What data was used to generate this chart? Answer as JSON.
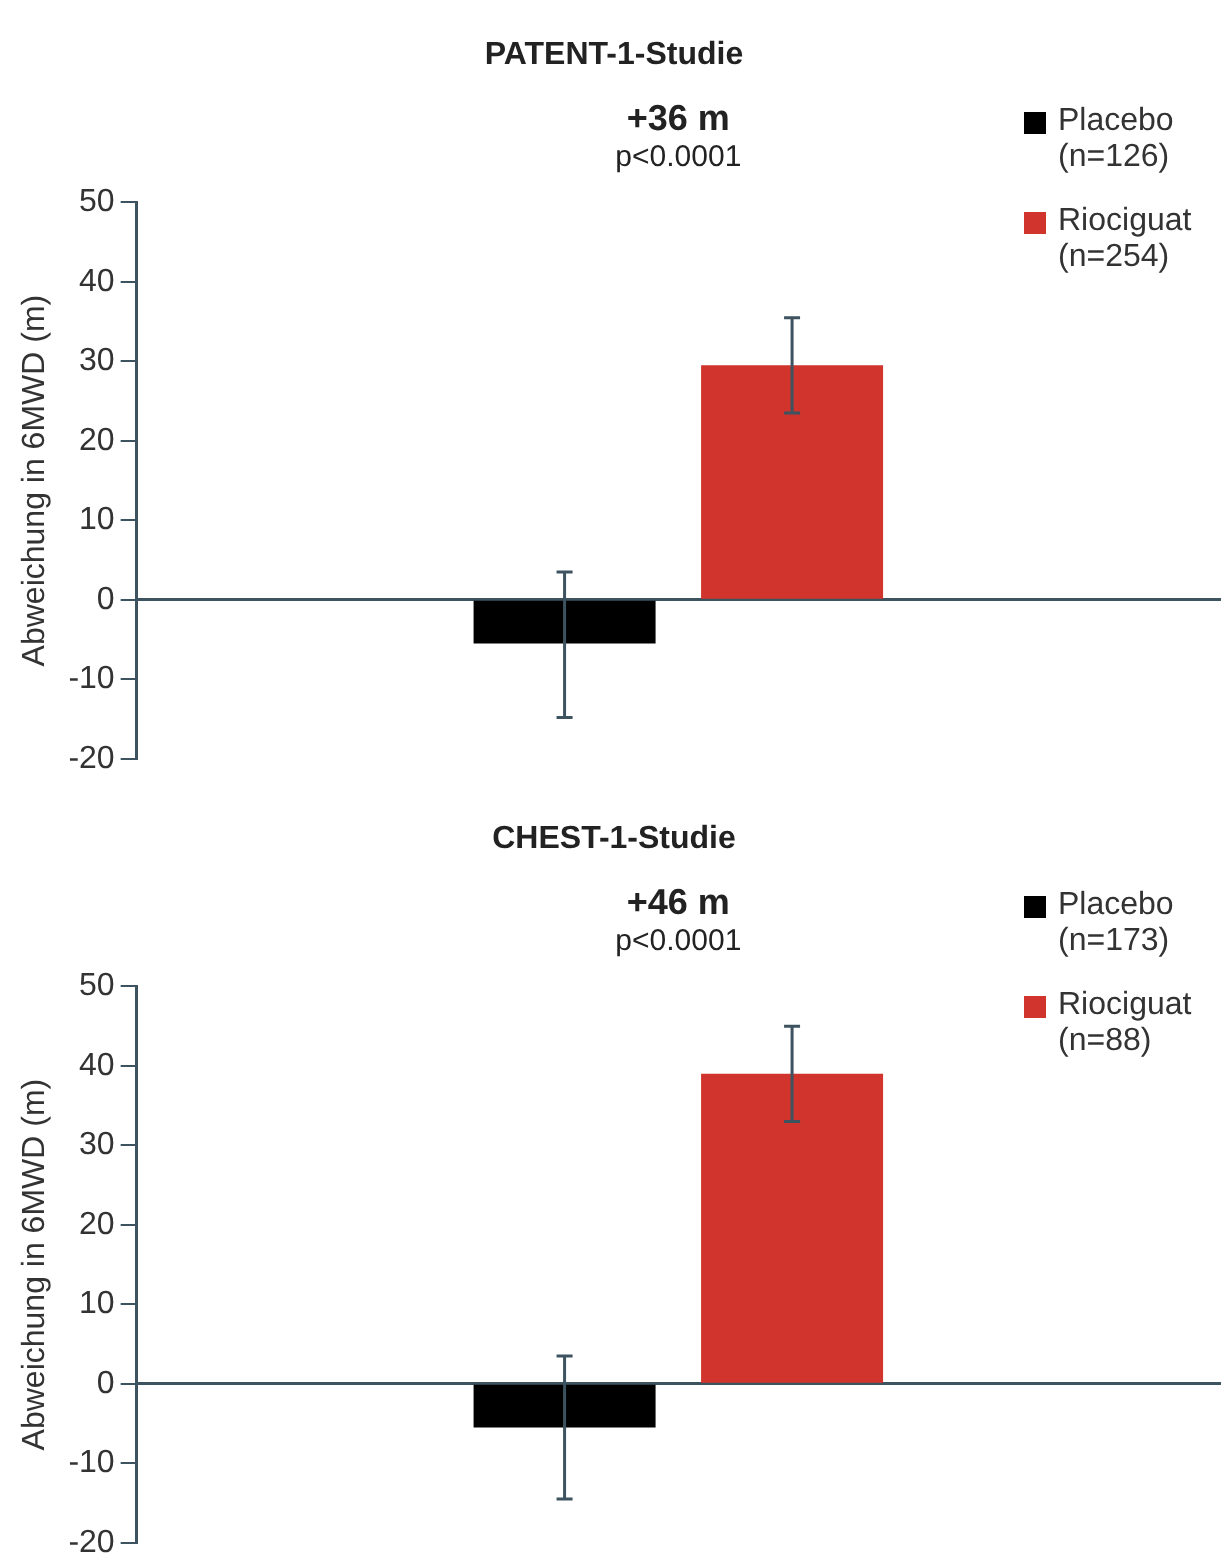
{
  "chart_data": [
    {
      "type": "bar",
      "title": "PATENT-1-Studie",
      "ylabel": "Abweichung in 6MWD (m)",
      "annotations": [
        "+36 m",
        "p<0.0001"
      ],
      "categories": [
        null
      ],
      "series": [
        {
          "name": "Placebo (n=126)",
          "color": "#000000",
          "values": [
            -5.5
          ],
          "errors": [
            [
              -14.8,
              3.5
            ]
          ]
        },
        {
          "name": "Riociguat (n=254)",
          "color": "#d0342c",
          "values": [
            29.5
          ],
          "errors": [
            [
              23.5,
              35.5
            ]
          ]
        }
      ],
      "ylim": [
        -20,
        50
      ],
      "yticks": [
        -20,
        -10,
        0,
        10,
        20,
        30,
        40,
        50
      ],
      "legend": "top right"
    },
    {
      "type": "bar",
      "title": "CHEST-1-Studie",
      "ylabel": "Abweichung in 6MWD (m)",
      "annotations": [
        "+46 m",
        "p<0.0001"
      ],
      "categories": [
        null
      ],
      "series": [
        {
          "name": "Placebo (n=173)",
          "color": "#000000",
          "values": [
            -5.5
          ],
          "errors": [
            [
              -14.5,
              3.5
            ]
          ]
        },
        {
          "name": "Riociguat (n=88)",
          "color": "#d0342c",
          "values": [
            39
          ],
          "errors": [
            [
              33,
              45
            ]
          ]
        }
      ],
      "ylim": [
        -20,
        50
      ],
      "yticks": [
        -20,
        -10,
        0,
        10,
        20,
        30,
        40,
        50
      ],
      "legend": "top right"
    }
  ]
}
